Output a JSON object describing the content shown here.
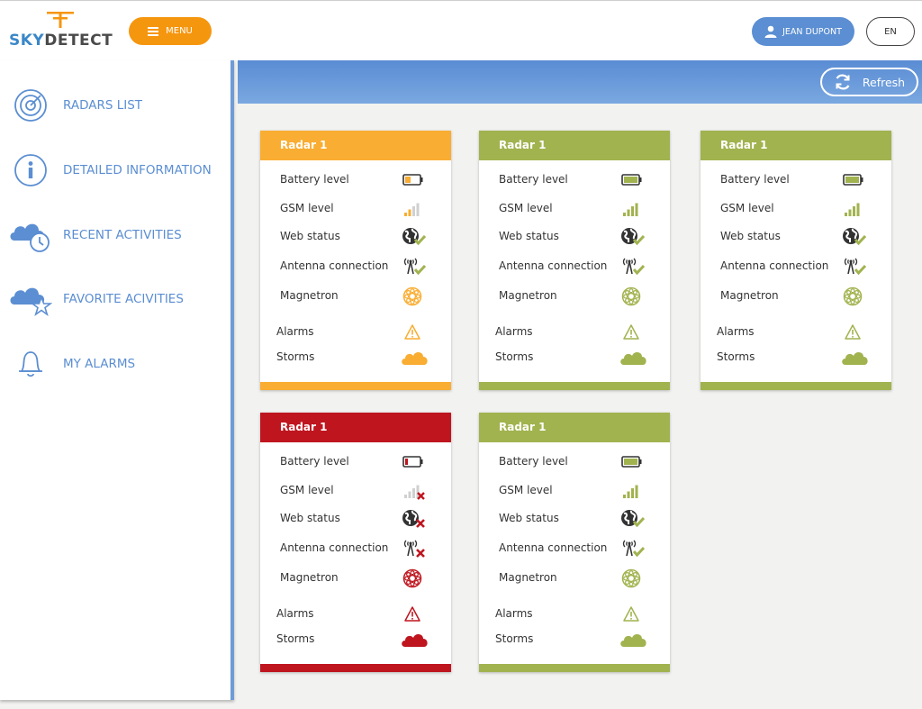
{
  "header": {
    "logo": {
      "sky": "SKY",
      "detect": "DETECT"
    },
    "menu_label": "MENU",
    "user_label": "JEAN DUPONT",
    "lang_label": "EN"
  },
  "sidebar": {
    "items": [
      {
        "label": "RADARS LIST",
        "icon": "radar-icon"
      },
      {
        "label": "DETAILED INFORMATION",
        "icon": "info-icon"
      },
      {
        "label": "RECENT ACTIVITIES",
        "icon": "cloud-clock-icon"
      },
      {
        "label": "FAVORITE ACIVITIES",
        "icon": "cloud-star-icon"
      },
      {
        "label": "MY ALARMS",
        "icon": "bell-icon"
      }
    ]
  },
  "toolbar": {
    "refresh_label": "Refresh"
  },
  "labels": {
    "battery": "Battery level",
    "gsm": "GSM level",
    "web": "Web status",
    "antenna": "Antenna connection",
    "magnetron": "Magnetron",
    "alarms": "Alarms",
    "storms": "Storms"
  },
  "colors": {
    "warning": "#f9ad32",
    "ok": "#a1b34f",
    "error": "#bf151f",
    "accent": "#5b8ed2",
    "menu": "#f5960f"
  },
  "radars": [
    {
      "name": "Radar 1",
      "status": "warning",
      "battery": 0.4,
      "gsm_bars": 2,
      "web": "ok",
      "antenna": "ok"
    },
    {
      "name": "Radar 1",
      "status": "ok",
      "battery": 1.0,
      "gsm_bars": 4,
      "web": "ok",
      "antenna": "ok"
    },
    {
      "name": "Radar 1",
      "status": "ok",
      "battery": 1.0,
      "gsm_bars": 4,
      "web": "ok",
      "antenna": "ok"
    },
    {
      "name": "Radar 1",
      "status": "error",
      "battery": 0.2,
      "gsm_bars": 0,
      "web": "error",
      "antenna": "error"
    },
    {
      "name": "Radar 1",
      "status": "ok",
      "battery": 1.0,
      "gsm_bars": 4,
      "web": "ok",
      "antenna": "ok"
    }
  ]
}
